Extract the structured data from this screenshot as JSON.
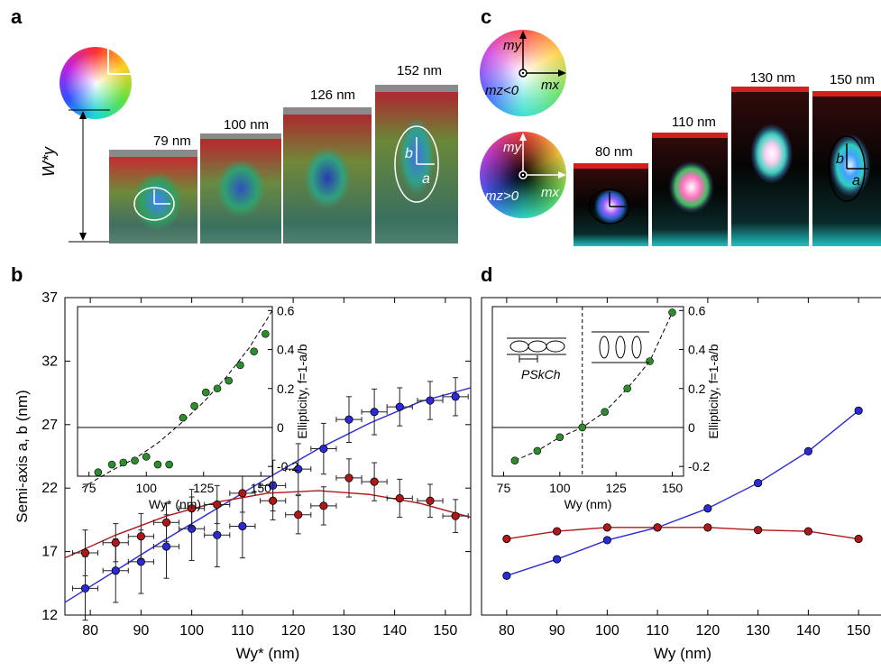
{
  "panels": {
    "a": "a",
    "b": "b",
    "c": "c",
    "d": "d"
  },
  "panel_a": {
    "wy_label": "W*y",
    "tiles": [
      {
        "label": "79 nm"
      },
      {
        "label": "100 nm"
      },
      {
        "label": "126 nm"
      },
      {
        "label": "152 nm"
      }
    ],
    "axis_letter_a": "a",
    "axis_letter_b": "b"
  },
  "panel_c": {
    "wheel_top": {
      "my": "my",
      "mx": "mx",
      "mz": "mz<0"
    },
    "wheel_bottom": {
      "my": "my",
      "mx": "mx",
      "mz": "mz>0"
    },
    "tiles": [
      {
        "label": "80 nm"
      },
      {
        "label": "110 nm"
      },
      {
        "label": "130 nm"
      },
      {
        "label": "150 nm"
      }
    ],
    "axis_letter_a": "a",
    "axis_letter_b": "b"
  },
  "chart_data": [
    {
      "id": "b",
      "type": "scatter",
      "xlabel": "Wy* (nm)",
      "ylabel": "Semi-axis a, b (nm)",
      "xlim": [
        75,
        155
      ],
      "ylim": [
        12,
        37
      ],
      "xticks": [
        80,
        90,
        100,
        110,
        120,
        130,
        140,
        150
      ],
      "yticks": [
        12,
        17,
        22,
        27,
        32,
        37
      ],
      "series": [
        {
          "color": "#2a2ad8",
          "points": [
            {
              "x": 79,
              "y": 14.1,
              "xerr": 2.5,
              "yerr": 2.5
            },
            {
              "x": 85,
              "y": 15.5,
              "xerr": 2.5,
              "yerr": 2.5
            },
            {
              "x": 90,
              "y": 16.2,
              "xerr": 2.5,
              "yerr": 2.5
            },
            {
              "x": 95,
              "y": 17.4,
              "xerr": 2.5,
              "yerr": 2.5
            },
            {
              "x": 100,
              "y": 18.8,
              "xerr": 2.5,
              "yerr": 2.5
            },
            {
              "x": 105,
              "y": 18.3,
              "xerr": 2.5,
              "yerr": 2.5
            },
            {
              "x": 110,
              "y": 19.0,
              "xerr": 2.5,
              "yerr": 2.5
            },
            {
              "x": 116,
              "y": 22.2,
              "xerr": 2.5,
              "yerr": 2.0
            },
            {
              "x": 121,
              "y": 23.5,
              "xerr": 2.5,
              "yerr": 2.0
            },
            {
              "x": 126,
              "y": 25.1,
              "xerr": 2.5,
              "yerr": 2.0
            },
            {
              "x": 131,
              "y": 27.4,
              "xerr": 2.5,
              "yerr": 1.8
            },
            {
              "x": 136,
              "y": 28.0,
              "xerr": 2.5,
              "yerr": 1.8
            },
            {
              "x": 141,
              "y": 28.4,
              "xerr": 2.5,
              "yerr": 1.5
            },
            {
              "x": 147,
              "y": 28.9,
              "xerr": 2.5,
              "yerr": 1.5
            },
            {
              "x": 152,
              "y": 29.2,
              "xerr": 2.5,
              "yerr": 1.5
            }
          ],
          "fit": [
            [
              75,
              13.0
            ],
            [
              85,
              15.5
            ],
            [
              95,
              18.0
            ],
            [
              105,
              20.4
            ],
            [
              115,
              22.8
            ],
            [
              125,
              25.1
            ],
            [
              135,
              27.1
            ],
            [
              145,
              28.8
            ],
            [
              155,
              29.9
            ]
          ]
        },
        {
          "color": "#b01818",
          "points": [
            {
              "x": 79,
              "y": 16.9,
              "xerr": 2.5,
              "yerr": 1.8
            },
            {
              "x": 85,
              "y": 17.7,
              "xerr": 2.5,
              "yerr": 1.5
            },
            {
              "x": 90,
              "y": 18.2,
              "xerr": 2.5,
              "yerr": 1.8
            },
            {
              "x": 95,
              "y": 19.3,
              "xerr": 2.5,
              "yerr": 1.5
            },
            {
              "x": 100,
              "y": 20.4,
              "xerr": 2.5,
              "yerr": 1.5
            },
            {
              "x": 105,
              "y": 20.7,
              "xerr": 2.5,
              "yerr": 1.5
            },
            {
              "x": 110,
              "y": 21.6,
              "xerr": 2.5,
              "yerr": 1.5
            },
            {
              "x": 116,
              "y": 21.0,
              "xerr": 2.5,
              "yerr": 1.5
            },
            {
              "x": 121,
              "y": 19.9,
              "xerr": 2.5,
              "yerr": 1.5
            },
            {
              "x": 126,
              "y": 20.6,
              "xerr": 2.5,
              "yerr": 1.5
            },
            {
              "x": 131,
              "y": 22.8,
              "xerr": 2.5,
              "yerr": 1.5
            },
            {
              "x": 136,
              "y": 22.5,
              "xerr": 2.5,
              "yerr": 1.5
            },
            {
              "x": 141,
              "y": 21.2,
              "xerr": 2.5,
              "yerr": 1.5
            },
            {
              "x": 147,
              "y": 21.0,
              "xerr": 2.5,
              "yerr": 1.3
            },
            {
              "x": 152,
              "y": 19.8,
              "xerr": 2.5,
              "yerr": 1.3
            }
          ],
          "fit": [
            [
              75,
              16.5
            ],
            [
              85,
              18.3
            ],
            [
              95,
              19.8
            ],
            [
              105,
              20.9
            ],
            [
              115,
              21.6
            ],
            [
              125,
              21.8
            ],
            [
              135,
              21.5
            ],
            [
              145,
              20.8
            ],
            [
              155,
              19.7
            ]
          ]
        }
      ],
      "inset": {
        "xlabel": "Wy* (nm)",
        "ylabel": "Ellipticity, f=1-a/b",
        "xlim": [
          70,
          155
        ],
        "ylim": [
          -0.25,
          0.62
        ],
        "xticks": [
          75,
          100,
          125,
          150
        ],
        "yticks": [
          -0.2,
          0,
          0.2,
          0.4,
          0.6
        ],
        "color": "#2e8b2e",
        "points": [
          [
            79,
            -0.23
          ],
          [
            85,
            -0.19
          ],
          [
            90,
            -0.18
          ],
          [
            95,
            -0.17
          ],
          [
            100,
            -0.15
          ],
          [
            105,
            -0.19
          ],
          [
            110,
            -0.19
          ],
          [
            116,
            0.05
          ],
          [
            121,
            0.11
          ],
          [
            126,
            0.18
          ],
          [
            131,
            0.2
          ],
          [
            136,
            0.24
          ],
          [
            141,
            0.32
          ],
          [
            147,
            0.39
          ],
          [
            152,
            0.48
          ]
        ],
        "fit": [
          [
            72,
            -0.31
          ],
          [
            85,
            -0.22
          ],
          [
            95,
            -0.16
          ],
          [
            105,
            -0.08
          ],
          [
            115,
            0.02
          ],
          [
            125,
            0.13
          ],
          [
            135,
            0.26
          ],
          [
            145,
            0.41
          ],
          [
            155,
            0.6
          ]
        ],
        "hline": 0
      }
    },
    {
      "id": "d",
      "type": "line",
      "xlabel": "Wy (nm)",
      "xlim": [
        75,
        155
      ],
      "ylim": [
        12,
        37
      ],
      "xticks": [
        80,
        90,
        100,
        110,
        120,
        130,
        140,
        150
      ],
      "series": [
        {
          "color": "#2a2ad8",
          "points": [
            [
              80,
              15.1
            ],
            [
              90,
              16.4
            ],
            [
              100,
              17.9
            ],
            [
              110,
              18.9
            ],
            [
              120,
              20.4
            ],
            [
              130,
              22.4
            ],
            [
              140,
              24.9
            ],
            [
              150,
              28.1
            ]
          ]
        },
        {
          "color": "#b01818",
          "points": [
            [
              80,
              18.0
            ],
            [
              90,
              18.6
            ],
            [
              100,
              18.9
            ],
            [
              110,
              18.9
            ],
            [
              120,
              18.9
            ],
            [
              130,
              18.7
            ],
            [
              140,
              18.6
            ],
            [
              150,
              18.0
            ]
          ]
        }
      ],
      "inset": {
        "xlabel": "Wy (nm)",
        "ylabel": "Ellipticity, f=1-a/b",
        "xlim": [
          70,
          155
        ],
        "ylim": [
          -0.25,
          0.62
        ],
        "xticks": [
          75,
          100,
          125,
          150
        ],
        "yticks": [
          -0.2,
          0,
          0.2,
          0.4,
          0.6
        ],
        "color": "#2e8b2e",
        "points": [
          [
            80,
            -0.17
          ],
          [
            90,
            -0.12
          ],
          [
            100,
            -0.05
          ],
          [
            110,
            0.0
          ],
          [
            120,
            0.08
          ],
          [
            130,
            0.2
          ],
          [
            140,
            0.34
          ],
          [
            150,
            0.59
          ]
        ],
        "vline": 110,
        "hline": 0,
        "pskch_label": "PSkCh"
      }
    }
  ]
}
